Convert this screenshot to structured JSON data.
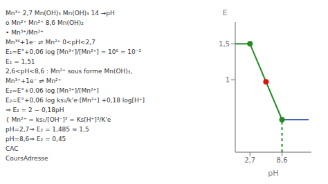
{
  "chart_data": {
    "type": "line",
    "x_label": "pH",
    "y_label": "E",
    "xlim": [
      0,
      14
    ],
    "ylim": [
      0,
      1.8
    ],
    "xticks": [
      {
        "value": 2.7,
        "label": "2,7"
      },
      {
        "value": 8.6,
        "label": "8,6"
      }
    ],
    "yticks": [
      1,
      {
        "value": 1.5,
        "label": "1,5"
      }
    ],
    "series": [
      {
        "type": "line",
        "color": "#228B22",
        "x": [
          0,
          2.7
        ],
        "y": [
          1.5,
          1.5
        ]
      },
      {
        "type": "line",
        "color": "#228B22",
        "x": [
          2.7,
          8.6
        ],
        "y": [
          1.5,
          0.45
        ]
      },
      {
        "type": "line",
        "color": "#4466aa",
        "x": [
          8.6,
          13.5
        ],
        "y": [
          0.45,
          0.45
        ]
      },
      {
        "type": "line",
        "color": "#228B22",
        "line_style": "dashed",
        "x": [
          8.6,
          8.6
        ],
        "y": [
          0,
          0.45
        ]
      },
      {
        "type": "scatter",
        "color": "#dd1111",
        "x": [
          5.65
        ],
        "y": [
          0.975
        ]
      },
      {
        "type": "scatter",
        "color": "#228B22",
        "x": [
          2.7
        ],
        "y": [
          1.5
        ]
      },
      {
        "type": "scatter",
        "color": "#228B22",
        "x": [
          8.6
        ],
        "y": [
          0.45
        ]
      }
    ],
    "annotations": [
      "Mn³⁺  2,7  Mn(OH)₃  Mn(OH)₃  14  →pH",
      "o Mn²⁺  Mn²⁺  8,6  Mn(OH)₂",
      "• Mn³⁺/Mn²⁺",
      "Mn³⁴+1e⁻ ⇌ Mn²⁺  0<pH<2,7",
      "E₁=E°+0,06 log [Mn³⁺]/[Mn²⁺]  = 10⁰  = 10⁻²",
      "E₁ = 1,51",
      "2,6<pH<8,6 :  Mn²⁺ sous forme Mn(OH)₃,",
      "Mn³⁺+1e⁻ ⇌ Mn²⁺",
      "E₂=E°+0,06 log [Mn³⁺]/[Mn²⁺]",
      "E₂=E°+0,06 log ks₁/k'e·[Mn²⁺] +0,18 log[H⁺]",
      "⇒ E₂ = 2 − 0,18pH",
      "{ Mn²⁺ = ks₁/[OH⁻]³ = Ks[H⁺]³/K'e",
      "pH=2,7⇒ E₂ = 1,485 ≈ 1,5",
      "pH=8,6⇒ E₂ = 0,45",
      "CAC",
      "CoursAdresse"
    ]
  }
}
